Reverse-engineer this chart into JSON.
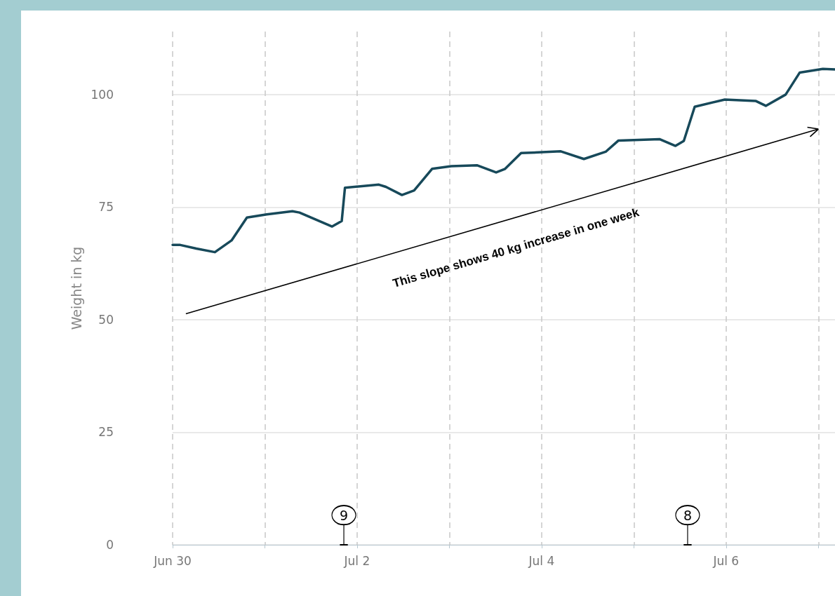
{
  "chart_data": {
    "type": "line",
    "ylabel": "Weight in kg",
    "x": [
      "--06-30T00:00",
      "--06-30T02:00",
      "--06-30T06:10",
      "--06-30T11:00",
      "--06-30T15:20",
      "--06-30T19:20",
      "--07-01T00:30",
      "--07-01T07:10",
      "--07-01T09:00",
      "--07-01T17:30",
      "--07-01T20:00",
      "--07-01T20:50",
      "--07-02T05:40",
      "--07-02T07:30",
      "--07-02T11:40",
      "--07-02T14:50",
      "--07-02T19:30",
      "--07-03T00:30",
      "--07-03T07:10",
      "--07-03T12:10",
      "--07-03T14:30",
      "--07-03T18:40",
      "--07-04T05:00",
      "--07-04T11:00",
      "--07-04T16:40",
      "--07-04T20:00",
      "--07-05T06:40",
      "--07-05T10:50",
      "--07-05T13:00",
      "--07-05T15:50",
      "--07-05T23:40",
      "--07-06T07:40",
      "--07-06T10:20",
      "--07-06T15:30",
      "--07-06T19:10",
      "--07-07T01:10",
      "--07-07T04:20"
    ],
    "series": [
      {
        "color": "#17495a",
        "values": [
          66.6,
          66.6,
          65.8,
          65.0,
          67.6,
          72.7,
          73.4,
          74.1,
          73.8,
          70.7,
          71.9,
          79.3,
          80.0,
          79.5,
          77.7,
          78.7,
          83.5,
          84.1,
          84.3,
          82.7,
          83.5,
          87.0,
          87.4,
          85.7,
          87.3,
          89.8,
          90.1,
          88.6,
          89.7,
          97.3,
          98.9,
          98.6,
          97.5,
          100.0,
          104.9,
          105.7,
          105.6
        ]
      }
    ],
    "xlim": [
      "--06-30T00:00",
      "--07-07T04:20"
    ],
    "xticks": [
      {
        "value": "--06-30",
        "label": "Jun 30"
      },
      {
        "value": "--07-01",
        "label": null
      },
      {
        "value": "--07-02",
        "label": "Jul 2"
      },
      {
        "value": "--07-03",
        "label": null
      },
      {
        "value": "--07-04",
        "label": "Jul 4"
      },
      {
        "value": "--07-05",
        "label": null
      },
      {
        "value": "--07-06",
        "label": "Jul 6"
      },
      {
        "value": "--07-07",
        "label": null
      }
    ],
    "ylim": [
      0,
      114
    ],
    "yticks": [
      0,
      25,
      50,
      75,
      100
    ],
    "grid": true,
    "marker": "none",
    "annotations": [
      "This slope shows 40 kg increase in one week",
      "9",
      "8"
    ]
  }
}
